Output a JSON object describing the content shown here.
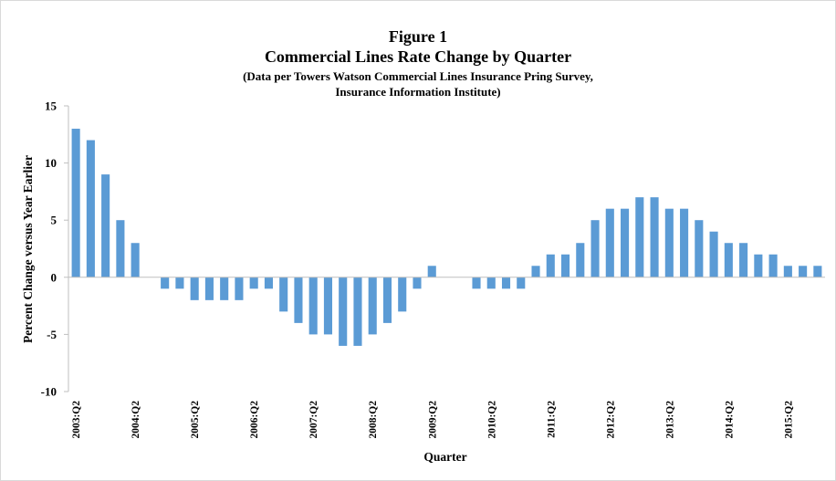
{
  "chart_data": {
    "type": "bar",
    "title": "Figure 1",
    "subtitle": "Commercial Lines Rate Change by Quarter",
    "source_note_lines": [
      "(Data per Towers Watson Commercial Lines Insurance Pring Survey,",
      "Insurance Information Institute)"
    ],
    "xlabel": "Quarter",
    "ylabel": "Percent Change  versus Year Earlier",
    "ylim": [
      -10,
      15
    ],
    "yticks": [
      15,
      10,
      5,
      0,
      -5,
      -10
    ],
    "categories": [
      "2003:Q2",
      "2003:Q3",
      "2003:Q4",
      "2004:Q1",
      "2004:Q2",
      "2004:Q3",
      "2004:Q4",
      "2005:Q1",
      "2005:Q2",
      "2005:Q3",
      "2005:Q4",
      "2006:Q1",
      "2006:Q2",
      "2006:Q3",
      "2006:Q4",
      "2007:Q1",
      "2007:Q2",
      "2007:Q3",
      "2007:Q4",
      "2008:Q1",
      "2008:Q2",
      "2008:Q3",
      "2008:Q4",
      "2009:Q1",
      "2009:Q2",
      "2009:Q3",
      "2009:Q4",
      "2010:Q1",
      "2010:Q2",
      "2010:Q3",
      "2010:Q4",
      "2011:Q1",
      "2011:Q2",
      "2011:Q3",
      "2011:Q4",
      "2012:Q1",
      "2012:Q2",
      "2012:Q3",
      "2012:Q4",
      "2013:Q1",
      "2013:Q2",
      "2013:Q3",
      "2013:Q4",
      "2014:Q1",
      "2014:Q2",
      "2014:Q3",
      "2014:Q4",
      "2015:Q1",
      "2015:Q2",
      "2015:Q3",
      "2015:Q4"
    ],
    "x_tick_labels": [
      "2003:Q2",
      "",
      "",
      "",
      "2004:Q2",
      "",
      "",
      "",
      "2005:Q2",
      "",
      "",
      "",
      "2006:Q2",
      "",
      "",
      "",
      "2007:Q2",
      "",
      "",
      "",
      "2008:Q2",
      "",
      "",
      "",
      "2009:Q2",
      "",
      "",
      "",
      "2010:Q2",
      "",
      "",
      "",
      "2011:Q2",
      "",
      "",
      "",
      "2012:Q2",
      "",
      "",
      "",
      "2013:Q2",
      "",
      "",
      "",
      "2014:Q2",
      "",
      "",
      "",
      "2015:Q2",
      "",
      ""
    ],
    "values": [
      13,
      12,
      9,
      5,
      3,
      0,
      -1,
      -1,
      -2,
      -2,
      -2,
      -2,
      -1,
      -1,
      -3,
      -4,
      -5,
      -5,
      -6,
      -6,
      -5,
      -4,
      -3,
      -1,
      1,
      0,
      0,
      -1,
      -1,
      -1,
      -1,
      1,
      2,
      2,
      3,
      5,
      6,
      6,
      7,
      7,
      6,
      6,
      5,
      4,
      3,
      3,
      2,
      2,
      1,
      1,
      1
    ],
    "bar_color": "#5b9bd5",
    "grid": false,
    "legend": "none"
  }
}
